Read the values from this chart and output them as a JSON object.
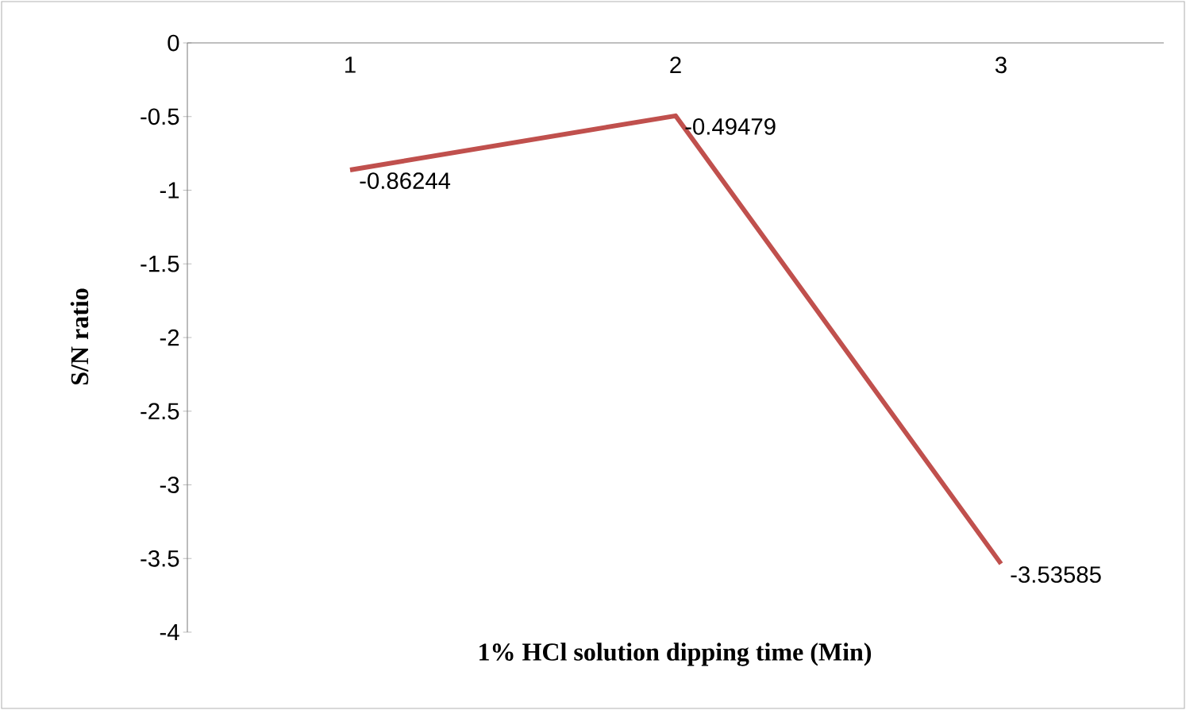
{
  "chart_data": {
    "type": "line",
    "xlabel": "1% HCl solution dipping time (Min)",
    "ylabel": "S/N ratio",
    "categories": [
      "1",
      "2",
      "3"
    ],
    "values": [
      -0.86244,
      -0.49479,
      -3.53585
    ],
    "color": "#c0504d",
    "ylim": [
      -4,
      0
    ],
    "yticks": [
      0,
      -0.5,
      -1,
      -1.5,
      -2,
      -2.5,
      -3,
      -3.5,
      -4
    ],
    "data_labels": true,
    "marker": "none",
    "line_style": "solid"
  }
}
